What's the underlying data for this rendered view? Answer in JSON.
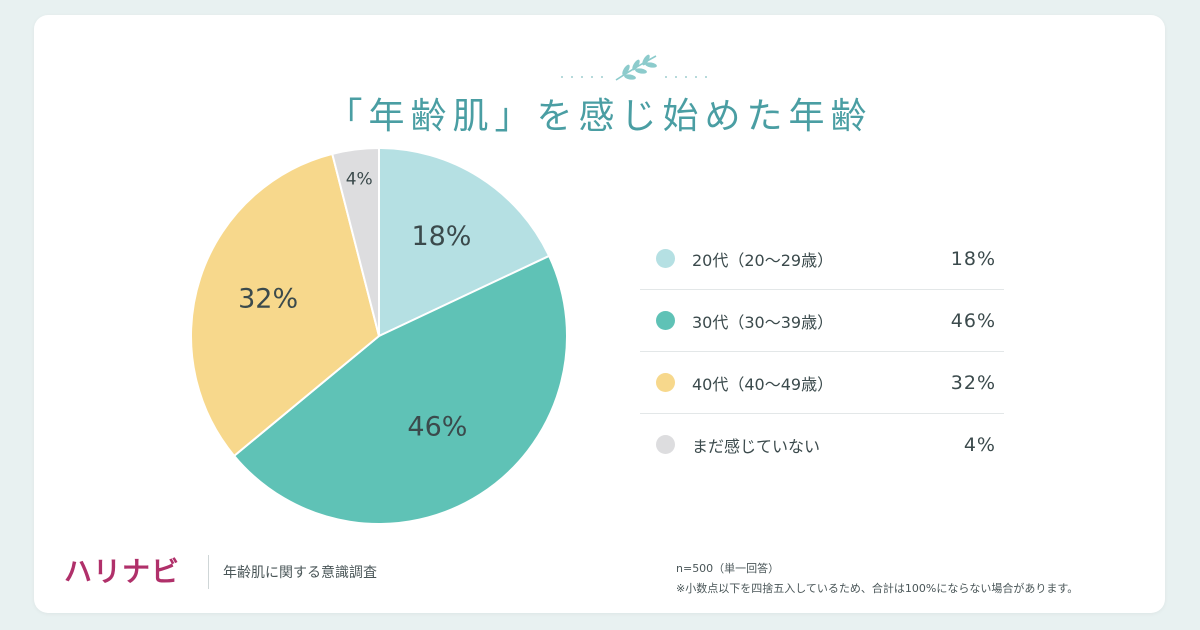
{
  "title": "「年齢肌」を感じ始めた年齢",
  "chart_data": {
    "type": "pie",
    "title": "「年齢肌」を感じ始めた年齢",
    "legend_position": "right",
    "slices": [
      {
        "label": "20代（20〜29歳）",
        "value": 18,
        "display": "18%",
        "color": "#b5e0e3"
      },
      {
        "label": "30代（30〜39歳）",
        "value": 46,
        "display": "46%",
        "color": "#5fc2b6"
      },
      {
        "label": "40代（40〜49歳）",
        "value": 32,
        "display": "32%",
        "color": "#f7d88c"
      },
      {
        "label": "まだ感じていない",
        "value": 4,
        "display": "4%",
        "color": "#dddddf"
      }
    ]
  },
  "footer": {
    "brand": "ハリナビ",
    "survey_name": "年齢肌に関する意識調査",
    "sample_note": "n=500（単一回答）",
    "rounding_note": "※小数点以下を四捨五入しているため、合計は100%にならない場合があります。"
  },
  "colors": {
    "title": "#4a9ea3",
    "brand": "#b0306a",
    "background": "#e8f1f1",
    "slice_border": "#ffffff"
  },
  "icons": {
    "ornament": "leaf-sprig-icon"
  }
}
